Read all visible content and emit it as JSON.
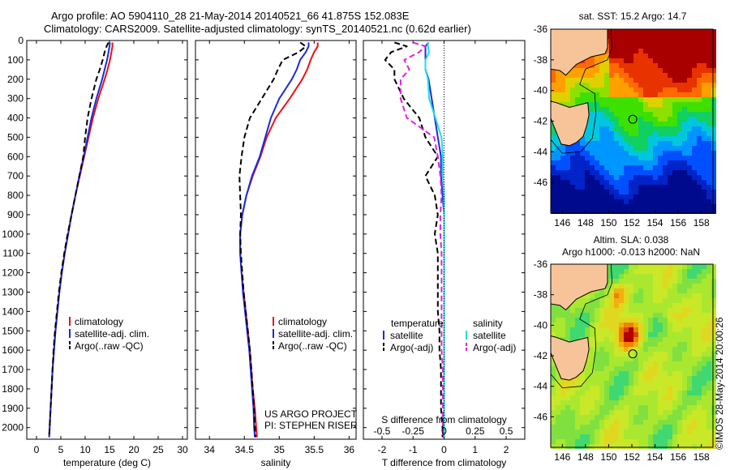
{
  "header": {
    "line1": "Argo profile: AO 5904110_28 21-May-2014 20140521_66 41.875S 152.083E",
    "line2": "Climatology: CARS2009. Satellite-adjusted climatology: synTS_20140521.nc (0.62d earlier)"
  },
  "colors": {
    "climatology": "#ee1111",
    "satellite": "#1a2be0",
    "argo": "#000000",
    "salinity_satellite": "#22dddd",
    "salinity_argo": "#e020e0",
    "land": "#f7c49a"
  },
  "depth_axis": {
    "ticks": [
      0,
      100,
      200,
      300,
      400,
      500,
      600,
      700,
      800,
      900,
      1000,
      1100,
      1200,
      1300,
      1400,
      1500,
      1600,
      1700,
      1800,
      1900,
      2000
    ],
    "ylim": [
      0,
      2060
    ],
    "inverted": true
  },
  "chart_data": [
    {
      "type": "line",
      "name": "temperature-profile",
      "xlabel": "temperature (deg C)",
      "xlim": [
        -2,
        31
      ],
      "xticks": [
        0,
        5,
        10,
        15,
        20,
        25,
        30
      ],
      "legend": [
        "climatology",
        "satellite-adj. clim.",
        "Argo(..raw -QC)"
      ],
      "legend_position": "lower-center",
      "depth": [
        10,
        30,
        60,
        100,
        150,
        200,
        300,
        400,
        500,
        600,
        700,
        800,
        900,
        1000,
        1100,
        1200,
        1300,
        1400,
        1500,
        1600,
        1700,
        1800,
        1900,
        2000,
        2050
      ],
      "series": [
        {
          "name": "climatology",
          "values": [
            15.6,
            15.6,
            15.4,
            15.1,
            14.6,
            14.0,
            12.7,
            11.6,
            10.7,
            9.8,
            8.9,
            8.0,
            7.2,
            6.5,
            5.8,
            5.2,
            4.7,
            4.3,
            3.9,
            3.6,
            3.3,
            3.1,
            2.9,
            2.7,
            2.6
          ]
        },
        {
          "name": "satellite-adj. clim.",
          "values": [
            15.1,
            15.0,
            14.8,
            14.5,
            14.0,
            13.5,
            12.3,
            11.3,
            10.5,
            9.7,
            8.8,
            8.0,
            7.2,
            6.5,
            5.8,
            5.2,
            4.7,
            4.3,
            3.9,
            3.6,
            3.3,
            3.1,
            2.9,
            2.7,
            2.6
          ]
        },
        {
          "name": "Argo(..raw -QC)",
          "values": [
            14.8,
            14.4,
            14.0,
            13.6,
            13.0,
            12.3,
            11.3,
            10.5,
            10.0,
            9.6,
            8.8,
            8.0,
            7.2,
            6.4,
            5.7,
            5.1,
            4.6,
            4.2,
            3.8,
            3.5,
            3.3,
            3.1,
            2.9,
            2.7,
            2.6
          ]
        }
      ]
    },
    {
      "type": "line",
      "name": "salinity-profile",
      "xlabel": "salinity",
      "xlim": [
        33.8,
        36.1
      ],
      "xticks": [
        34,
        34.5,
        35,
        35.5,
        36
      ],
      "legend": [
        "climatology",
        "satellite-adj. clim.",
        "Argo(..raw -QC)"
      ],
      "legend_position": "lower-right",
      "annotations": [
        "US ARGO PROJECT",
        "PI: STEPHEN RISER"
      ],
      "depth": [
        10,
        30,
        60,
        100,
        150,
        200,
        300,
        400,
        500,
        600,
        700,
        800,
        900,
        1000,
        1100,
        1200,
        1300,
        1400,
        1500,
        1600,
        1700,
        1800,
        1900,
        2000,
        2050
      ],
      "series": [
        {
          "name": "climatology",
          "values": [
            35.55,
            35.55,
            35.5,
            35.45,
            35.4,
            35.33,
            35.15,
            34.95,
            34.82,
            34.73,
            34.62,
            34.53,
            34.47,
            34.44,
            34.44,
            34.46,
            34.49,
            34.52,
            34.55,
            34.58,
            34.6,
            34.62,
            34.65,
            34.67,
            34.68
          ]
        },
        {
          "name": "satellite-adj. clim.",
          "values": [
            35.42,
            35.42,
            35.38,
            35.3,
            35.25,
            35.18,
            35.0,
            34.88,
            34.8,
            34.72,
            34.61,
            34.53,
            34.47,
            34.44,
            34.44,
            34.46,
            34.48,
            34.51,
            34.54,
            34.57,
            34.59,
            34.61,
            34.63,
            34.64,
            34.65
          ]
        },
        {
          "name": "Argo(..raw -QC)",
          "values": [
            35.3,
            35.38,
            35.28,
            35.05,
            34.98,
            34.92,
            34.75,
            34.58,
            34.5,
            34.46,
            34.43,
            34.44,
            34.45,
            34.44,
            34.45,
            34.47,
            34.49,
            34.52,
            34.55,
            34.58,
            34.6,
            34.62,
            34.64,
            34.65,
            34.66
          ]
        }
      ]
    },
    {
      "type": "line",
      "name": "difference-profile",
      "xlabel": "T difference from climatology",
      "xlabel_top": "S difference from climatology",
      "xlim": [
        -2.6,
        2.6
      ],
      "xticks": [
        -2,
        -1,
        0,
        1,
        2
      ],
      "xticks_salinity": [
        -0.5,
        -0.25,
        0,
        0.25,
        0.5
      ],
      "zero_line": "dotted",
      "legend_title_left": "temperature",
      "legend_title_right": "salinity",
      "legend": [
        "satellite",
        "Argo(-adj)",
        "satellite",
        "Argo(-adj)"
      ],
      "depth": [
        10,
        30,
        60,
        100,
        150,
        200,
        300,
        400,
        500,
        600,
        700,
        800,
        900,
        1000,
        1100,
        1200,
        1300,
        1400,
        1500,
        1600,
        1700,
        1800,
        1900,
        2000,
        2050
      ],
      "series": [
        {
          "name": "temperature satellite",
          "values": [
            -0.5,
            -0.6,
            -0.6,
            -0.6,
            -0.6,
            -0.5,
            -0.4,
            -0.3,
            -0.2,
            -0.1,
            -0.1,
            -0.05,
            0,
            0,
            0,
            0,
            0,
            0,
            0,
            0,
            0,
            0,
            0,
            0,
            0
          ]
        },
        {
          "name": "temperature Argo(-adj)",
          "values": [
            -1.6,
            -1.2,
            -1.7,
            -1.9,
            -1.6,
            -1.6,
            -1.3,
            -0.8,
            -0.6,
            -0.2,
            -0.6,
            -0.3,
            -0.2,
            -0.3,
            -0.2,
            -0.2,
            -0.2,
            -0.2,
            -0.15,
            -0.15,
            -0.1,
            -0.1,
            -0.1,
            -0.05,
            -0.05
          ]
        },
        {
          "name": "salinity satellite",
          "values": [
            -0.13,
            -0.13,
            -0.12,
            -0.15,
            -0.15,
            -0.13,
            -0.12,
            -0.07,
            -0.02,
            -0.01,
            -0.01,
            0,
            0,
            0,
            0,
            0,
            0,
            0,
            0,
            0,
            0,
            0,
            0,
            0,
            0
          ]
        },
        {
          "name": "salinity Argo(-adj)",
          "values": [
            -0.25,
            -0.15,
            -0.2,
            -0.32,
            -0.28,
            -0.35,
            -0.35,
            -0.3,
            -0.08,
            -0.05,
            -0.03,
            -0.02,
            -0.03,
            -0.03,
            -0.02,
            -0.02,
            -0.02,
            -0.02,
            -0.02,
            -0.02,
            -0.01,
            -0.01,
            -0.01,
            -0.01,
            -0.01
          ]
        }
      ]
    },
    {
      "type": "heatmap",
      "name": "sst-map",
      "title": "sat. SST: 15.2 Argo: 14.7",
      "xticks": [
        146,
        148,
        150,
        152,
        154,
        156,
        158
      ],
      "yticks": [
        -36,
        -38,
        -40,
        -42,
        -44,
        -46
      ],
      "xlim": [
        145,
        159
      ],
      "ylim": [
        -48,
        -36
      ],
      "argo_position": {
        "lon": 152.08,
        "lat": -41.875
      }
    },
    {
      "type": "heatmap",
      "name": "sla-map",
      "title_line1": "Altim. SLA: 0.038",
      "title_line2": "Argo h1000: -0.013 h2000: NaN",
      "xticks": [
        146,
        148,
        150,
        152,
        154,
        156,
        158
      ],
      "yticks": [
        -36,
        -38,
        -40,
        -42,
        -44,
        -46
      ],
      "xlim": [
        145,
        159
      ],
      "ylim": [
        -48,
        -36
      ],
      "argo_position": {
        "lon": 152.08,
        "lat": -41.875
      }
    }
  ],
  "footer": {
    "watermark": "©IMOS 28-May-2014 20:00:26"
  }
}
